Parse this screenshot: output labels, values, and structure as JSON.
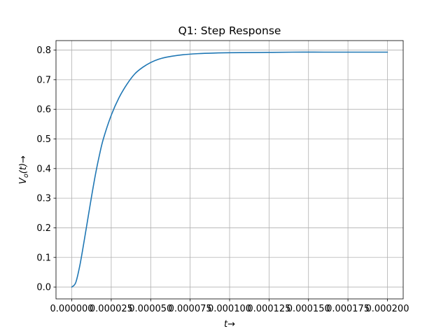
{
  "chart_data": {
    "type": "line",
    "title": "Q1: Step Response",
    "xlabel": "t →",
    "ylabel": "V_o(t) →",
    "xlim": [
      -1e-05,
      0.00021
    ],
    "ylim": [
      -0.04,
      0.832
    ],
    "grid": true,
    "x_ticks": [
      0.0,
      2.5e-05,
      5e-05,
      7.5e-05,
      0.0001,
      0.000125,
      0.00015,
      0.000175,
      0.0002
    ],
    "x_tick_labels": [
      "0.000000",
      "0.000025",
      "0.000050",
      "0.000075",
      "0.000100",
      "0.000125",
      "0.000150",
      "0.000175",
      "0.000200"
    ],
    "y_ticks": [
      0.0,
      0.1,
      0.2,
      0.3,
      0.4,
      0.5,
      0.6,
      0.7,
      0.8
    ],
    "y_tick_labels": [
      "0.0",
      "0.1",
      "0.2",
      "0.3",
      "0.4",
      "0.5",
      "0.6",
      "0.7",
      "0.8"
    ],
    "series": [
      {
        "color": "#1f77b4",
        "x": [
          0.0,
          2.5e-06,
          5e-06,
          7.5e-06,
          1e-05,
          1.25e-05,
          1.5e-05,
          1.75e-05,
          2e-05,
          2.5e-05,
          3e-05,
          3.5e-05,
          4e-05,
          4.5e-05,
          5e-05,
          5.5e-05,
          6e-05,
          7e-05,
          8e-05,
          9e-05,
          0.0001,
          0.00012,
          0.00014,
          0.00016,
          0.00018,
          0.0002
        ],
        "y": [
          0.0,
          0.015,
          0.07,
          0.145,
          0.225,
          0.305,
          0.38,
          0.445,
          0.5,
          0.58,
          0.64,
          0.685,
          0.72,
          0.742,
          0.758,
          0.769,
          0.776,
          0.784,
          0.788,
          0.79,
          0.791,
          0.792,
          0.793,
          0.793,
          0.793,
          0.793
        ]
      }
    ]
  }
}
